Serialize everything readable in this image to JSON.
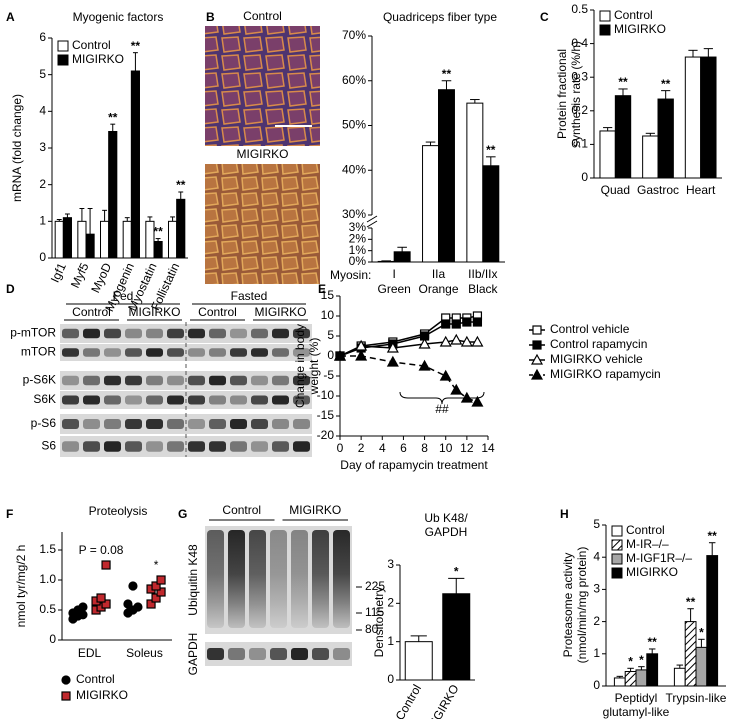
{
  "chart_data": [
    {
      "type": "bar",
      "panel": "A",
      "title": "Myogenic factors",
      "y_label": "mRNA (fold change)",
      "categories": [
        "Igf1",
        "Myf5",
        "MyoD",
        "Myogenin",
        "Myostatin",
        "Follistatin"
      ],
      "ylim": [
        0,
        6
      ],
      "yticks": [
        0,
        1,
        2,
        3,
        4,
        5,
        6
      ],
      "series": [
        {
          "name": "Control",
          "color": "#ffffff",
          "values": [
            1.0,
            1.0,
            1.0,
            1.0,
            1.0,
            1.0
          ],
          "errors": [
            0.05,
            0.35,
            0.3,
            0.1,
            0.12,
            0.12
          ]
        },
        {
          "name": "MIGIRKO",
          "color": "#000000",
          "values": [
            1.1,
            0.65,
            3.45,
            5.1,
            0.45,
            1.6
          ],
          "errors": [
            0.1,
            0.7,
            0.2,
            0.5,
            0.08,
            0.2
          ],
          "significance": [
            null,
            null,
            "**",
            "**",
            "**",
            "**"
          ]
        }
      ]
    },
    {
      "type": "bar",
      "panel": "B",
      "title": "Quadriceps fiber type",
      "images": [
        "Control",
        "MIGIRKO"
      ],
      "categories": [
        "I",
        "IIa",
        "IIb/IIx"
      ],
      "category_prefix": "Myosin:",
      "category_notes": [
        "Green",
        "Orange",
        "Black"
      ],
      "category_note_colors": [
        "#3aa63a",
        "#e0924a",
        "#000000"
      ],
      "segments": [
        {
          "ylim": [
            0,
            3
          ],
          "yticks": [
            {
              "value": 0,
              "label": "0%"
            },
            {
              "value": 1,
              "label": "1%"
            },
            {
              "value": 2,
              "label": "2%"
            },
            {
              "value": 3,
              "label": "3%"
            }
          ]
        },
        {
          "ylim": [
            30,
            70
          ],
          "yticks": [
            {
              "value": 30,
              "label": "30%"
            },
            {
              "value": 40,
              "label": "40%"
            },
            {
              "value": 50,
              "label": "50%"
            },
            {
              "value": 60,
              "label": "60%"
            },
            {
              "value": 70,
              "label": "70%"
            }
          ]
        }
      ],
      "series": [
        {
          "name": "Control",
          "color": "#ffffff",
          "values": [
            0.05,
            45.5,
            55
          ],
          "errors": [
            0.05,
            0.8,
            0.8
          ]
        },
        {
          "name": "MIGIRKO",
          "color": "#000000",
          "values": [
            0.9,
            58,
            41
          ],
          "errors": [
            0.4,
            2,
            2
          ],
          "significance": [
            null,
            "**",
            "**"
          ]
        }
      ]
    },
    {
      "type": "bar",
      "panel": "C",
      "y_label": "Protein fractional synthesis rate (%/h)",
      "categories": [
        "Quad",
        "Gastroc",
        "Heart"
      ],
      "ylim": [
        0,
        0.5
      ],
      "yticks": [
        0,
        0.1,
        0.2,
        0.3,
        0.4,
        0.5
      ],
      "series": [
        {
          "name": "Control",
          "color": "#ffffff",
          "values": [
            0.14,
            0.125,
            0.36
          ],
          "errors": [
            0.01,
            0.008,
            0.02
          ]
        },
        {
          "name": "MIGIRKO",
          "color": "#000000",
          "values": [
            0.245,
            0.235,
            0.36
          ],
          "errors": [
            0.02,
            0.025,
            0.025
          ],
          "significance": [
            "**",
            "**",
            null
          ]
        }
      ]
    },
    {
      "type": "blot",
      "panel": "D",
      "conditions": [
        "Fed",
        "Fasted"
      ],
      "groups": [
        "Control",
        "MIGIRKO",
        "Control",
        "MIGIRKO"
      ],
      "rows": [
        "p-mTOR",
        "mTOR",
        "p-S6K",
        "S6K",
        "p-S6",
        "S6"
      ]
    },
    {
      "type": "line",
      "panel": "E",
      "y_label": "Change in body weight (%)",
      "x_label": "Day of rapamycin treatment",
      "x": [
        0,
        2,
        5,
        8,
        10,
        11,
        12,
        13
      ],
      "xlim": [
        0,
        14
      ],
      "xticks": [
        0,
        2,
        4,
        6,
        8,
        10,
        12,
        14
      ],
      "ylim": [
        -20,
        15
      ],
      "yticks": [
        -20,
        -15,
        -10,
        -5,
        0,
        5,
        10,
        15
      ],
      "annotation": "##",
      "series": [
        {
          "name": "Control vehicle",
          "color": "#000000",
          "marker": "square",
          "filled": false,
          "dashed": false,
          "values": [
            0,
            2.5,
            3.5,
            5.5,
            9.5,
            9.5,
            9.5,
            10
          ]
        },
        {
          "name": "Control rapamycin",
          "color": "#000000",
          "marker": "square",
          "filled": true,
          "dashed": false,
          "values": [
            0,
            2,
            3,
            5,
            8,
            8,
            8.5,
            8.5
          ]
        },
        {
          "name": "MIGIRKO vehicle",
          "color": "#000000",
          "marker": "triangle",
          "filled": false,
          "dashed": false,
          "values": [
            0,
            2.5,
            2,
            3,
            3.5,
            4,
            3.5,
            3.5
          ]
        },
        {
          "name": "MIGIRKO rapamycin",
          "color": "#000000",
          "marker": "triangle",
          "filled": true,
          "dashed": true,
          "values": [
            0,
            0,
            -1.5,
            -2.5,
            -5,
            -8.5,
            -10.5,
            -11.5
          ]
        }
      ]
    },
    {
      "type": "scatter",
      "panel": "F",
      "title": "Proteolysis",
      "y_label": "nmol tyr/mg/2 h",
      "categories": [
        "EDL",
        "Soleus"
      ],
      "ylim": [
        0,
        1.8
      ],
      "yticks": [
        0,
        0.5,
        {
          "value": 1,
          "label": "1.0"
        },
        1.5
      ],
      "series": [
        {
          "name": "Control",
          "color": "#ffffff",
          "marker": "circle",
          "values": [
            [
              0.35,
              0.4,
              0.42,
              0.45,
              0.5,
              0.55
            ],
            [
              0.45,
              0.5,
              0.55,
              0.6,
              0.9
            ]
          ]
        },
        {
          "name": "MIGIRKO",
          "color": "#c0282d",
          "marker": "square",
          "values": [
            [
              0.5,
              0.55,
              0.6,
              0.65,
              0.7,
              1.25
            ],
            [
              0.6,
              0.7,
              0.8,
              0.85,
              0.9,
              1.0
            ]
          ],
          "significance": [
            "P = 0.08",
            "*"
          ]
        }
      ]
    },
    {
      "type": "blot",
      "panel": "G",
      "groups": [
        "Control",
        "MIGIRKO"
      ],
      "rows": [
        "Ubiquitin K48",
        "GAPDH"
      ],
      "markers": [
        225,
        115,
        80
      ]
    },
    {
      "type": "bar",
      "title": "Ub K48/ GAPDH",
      "y_label": "Densitometry",
      "categories": [
        "Control",
        "MIGIRKO"
      ],
      "colors": [
        "#ffffff",
        "#000000"
      ],
      "ylim": [
        0,
        3
      ],
      "yticks": [
        0,
        1,
        2,
        3
      ],
      "values": [
        1.0,
        2.25
      ],
      "errors": [
        0.15,
        0.4
      ],
      "significance": [
        null,
        "*"
      ]
    },
    {
      "type": "bar",
      "panel": "H",
      "y_label": "Proteasome activity (nmol/min/mg protein)",
      "categories": [
        "Peptidyl glutamyl-like",
        "Trypsin-like"
      ],
      "ylim": [
        0,
        5
      ],
      "yticks": [
        0,
        1,
        2,
        3,
        4,
        5
      ],
      "series": [
        {
          "name": "Control",
          "color": "#ffffff",
          "values": [
            0.25,
            0.55
          ],
          "errors": [
            0.05,
            0.1
          ]
        },
        {
          "name": "M-IR–/–",
          "color": "#ffffff",
          "pattern": "hatch",
          "values": [
            0.45,
            2.0
          ],
          "errors": [
            0.1,
            0.4
          ],
          "significance": [
            "*",
            "**"
          ]
        },
        {
          "name": "M-IGF1R–/–",
          "color": "#a6a6a6",
          "values": [
            0.5,
            1.2
          ],
          "errors": [
            0.1,
            0.25
          ],
          "significance": [
            "*",
            "*"
          ]
        },
        {
          "name": "MIGIRKO",
          "color": "#000000",
          "values": [
            1.0,
            4.05
          ],
          "errors": [
            0.15,
            0.4
          ],
          "significance": [
            "**",
            "**"
          ]
        }
      ]
    }
  ]
}
